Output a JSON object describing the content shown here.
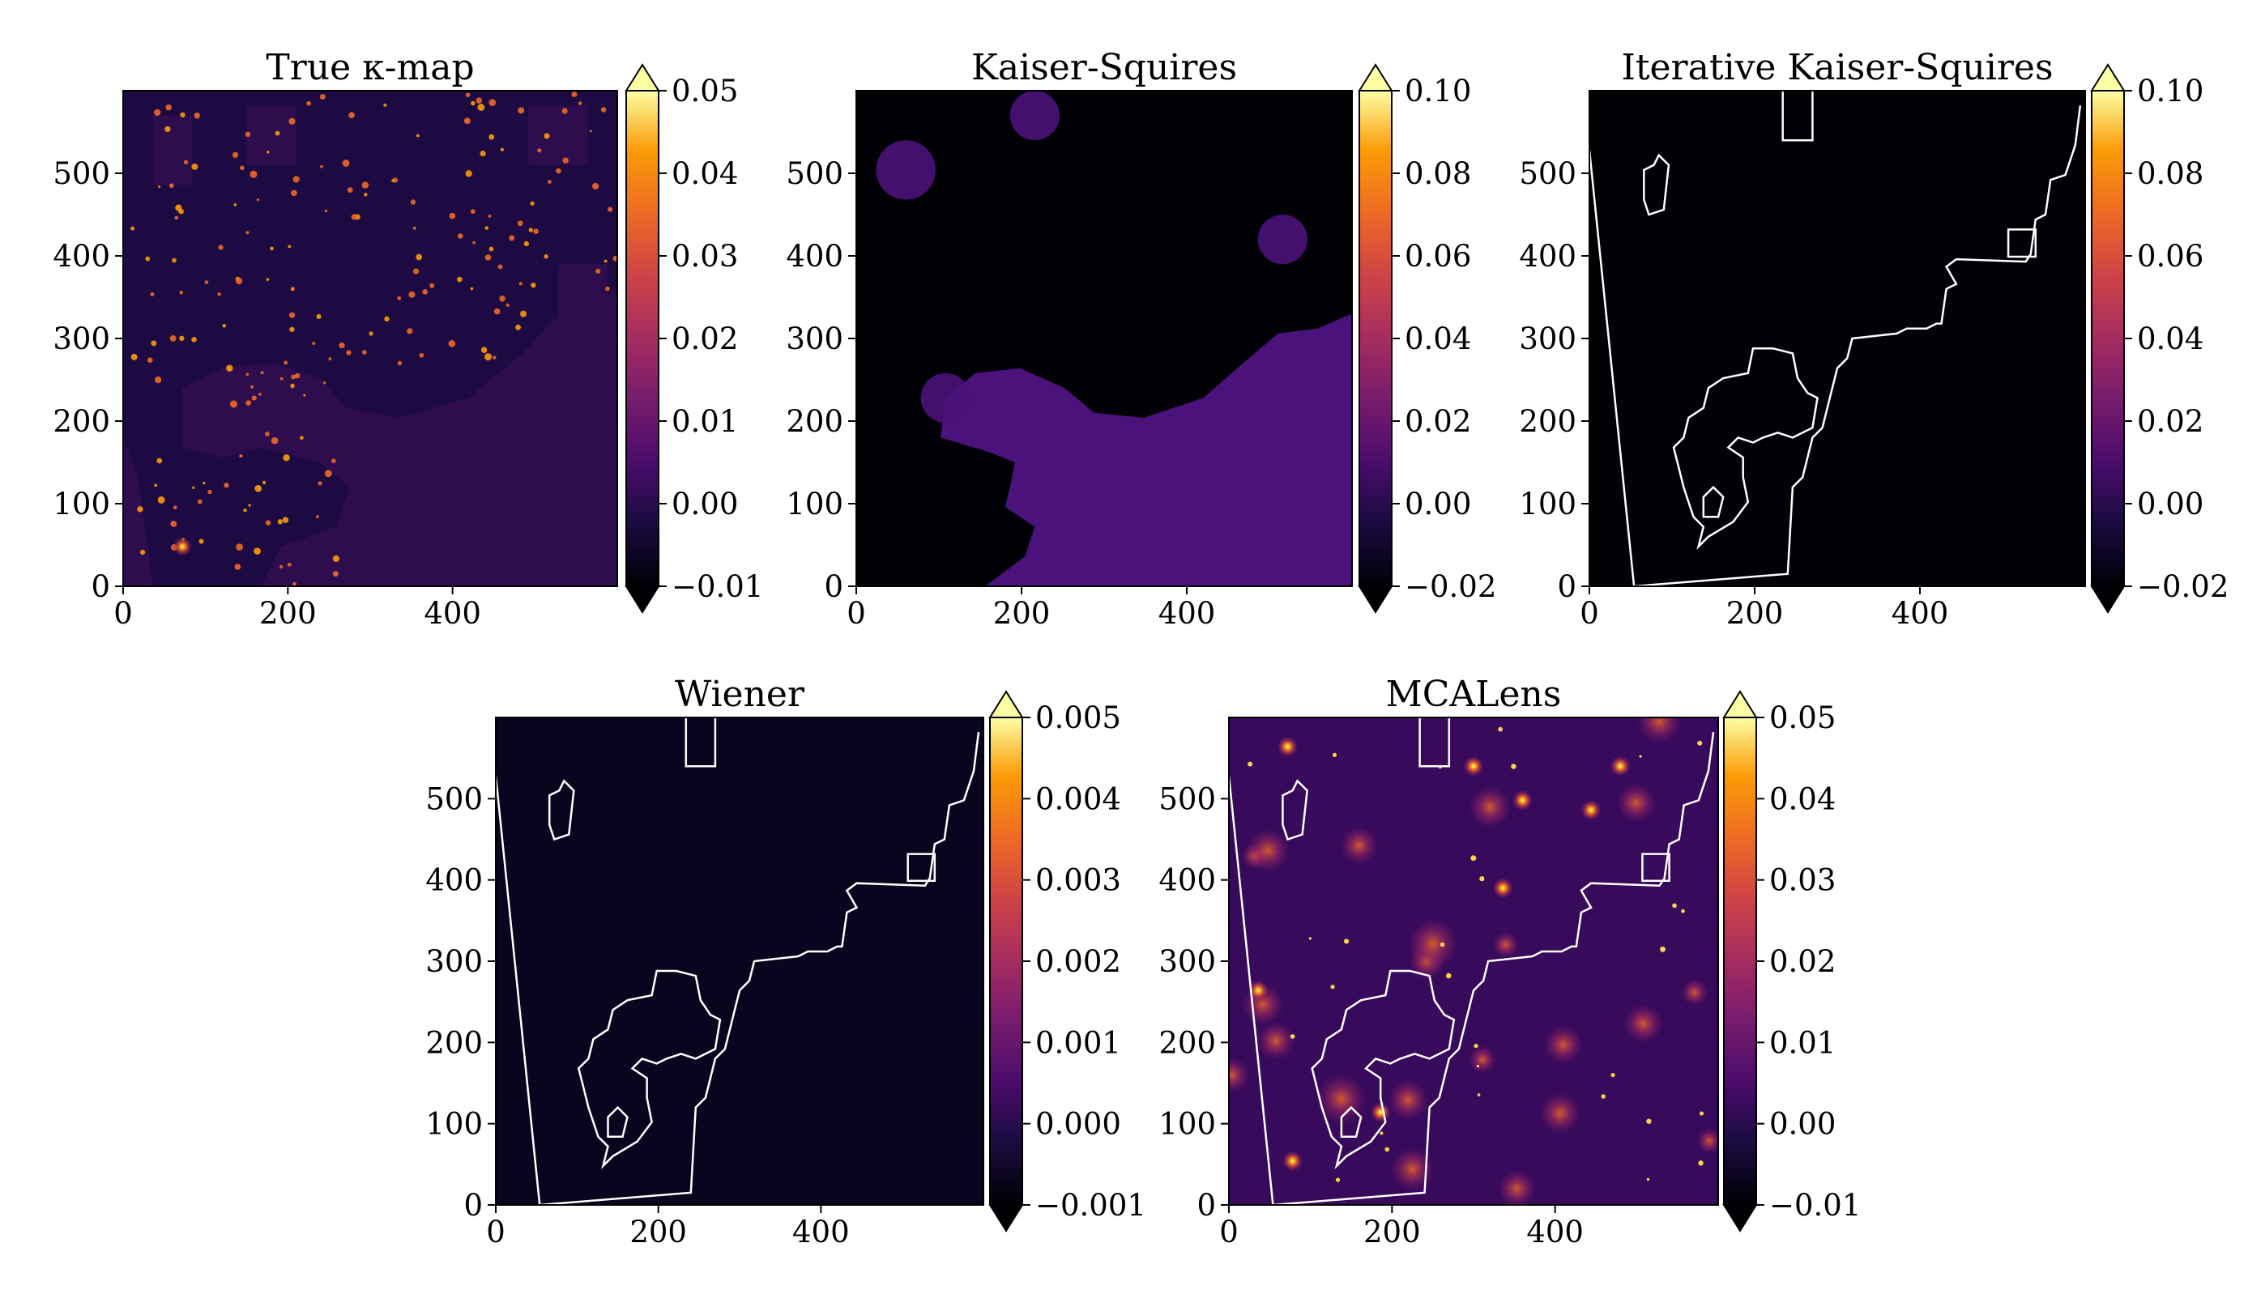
{
  "chart_data": [
    {
      "type": "heatmap",
      "title": "True κ-map",
      "xlim": [
        0,
        600
      ],
      "ylim": [
        0,
        600
      ],
      "xticks": [
        "0",
        "200",
        "400"
      ],
      "yticks": [
        "0",
        "100",
        "200",
        "300",
        "400",
        "500"
      ],
      "colorbar": {
        "ticks": [
          "0.05",
          "0.04",
          "0.03",
          "0.02",
          "0.01",
          "0.00",
          "−0.01"
        ],
        "range": [
          -0.01,
          0.05
        ],
        "extend": "both"
      },
      "texture": "fine-point",
      "mask_outline": false,
      "colormap": "inferno"
    },
    {
      "type": "heatmap",
      "title": "Kaiser-Squires",
      "xlim": [
        0,
        600
      ],
      "ylim": [
        0,
        600
      ],
      "xticks": [
        "0",
        "200",
        "400"
      ],
      "yticks": [
        "0",
        "100",
        "200",
        "300",
        "400",
        "500"
      ],
      "colorbar": {
        "ticks": [
          "0.10",
          "0.08",
          "0.06",
          "0.04",
          "0.02",
          "0.00",
          "−0.02"
        ],
        "range": [
          -0.02,
          0.1
        ],
        "extend": "both"
      },
      "texture": "speckle",
      "mask_outline": false,
      "colormap": "inferno"
    },
    {
      "type": "heatmap",
      "title": "Iterative Kaiser-Squires",
      "xlim": [
        0,
        600
      ],
      "ylim": [
        0,
        600
      ],
      "xticks": [
        "0",
        "200",
        "400"
      ],
      "yticks": [
        "0",
        "100",
        "200",
        "300",
        "400",
        "500"
      ],
      "colorbar": {
        "ticks": [
          "0.10",
          "0.08",
          "0.06",
          "0.04",
          "0.02",
          "0.00",
          "−0.02"
        ],
        "range": [
          -0.02,
          0.1
        ],
        "extend": "both"
      },
      "texture": "speckle",
      "mask_outline": true,
      "colormap": "inferno"
    },
    {
      "type": "heatmap",
      "title": "Wiener",
      "xlim": [
        0,
        600
      ],
      "ylim": [
        0,
        600
      ],
      "xticks": [
        "0",
        "200",
        "400"
      ],
      "yticks": [
        "0",
        "100",
        "200",
        "300",
        "400",
        "500"
      ],
      "colorbar": {
        "ticks": [
          "0.005",
          "0.004",
          "0.003",
          "0.002",
          "0.001",
          "0.000",
          "−0.001"
        ],
        "range": [
          -0.001,
          0.005
        ],
        "extend": "both"
      },
      "texture": "smooth",
      "mask_outline": true,
      "colormap": "inferno"
    },
    {
      "type": "heatmap",
      "title": "MCALens",
      "xlim": [
        0,
        600
      ],
      "ylim": [
        0,
        600
      ],
      "xticks": [
        "0",
        "200",
        "400"
      ],
      "yticks": [
        "0",
        "100",
        "200",
        "300",
        "400",
        "500"
      ],
      "colorbar": {
        "ticks": [
          "0.05",
          "0.04",
          "0.03",
          "0.02",
          "0.01",
          "0.00",
          "−0.01"
        ],
        "range": [
          -0.01,
          0.05
        ],
        "extend": "both"
      },
      "texture": "peaks",
      "mask_outline": true,
      "colormap": "inferno"
    }
  ]
}
